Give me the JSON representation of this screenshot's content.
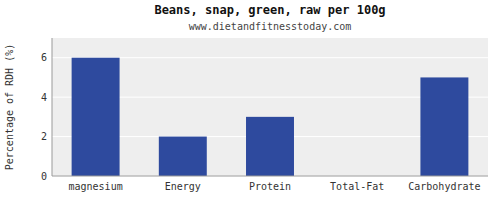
{
  "chart_data": {
    "type": "bar",
    "title": "Beans, snap, green, raw per 100g",
    "subtitle": "www.dietandfitnesstoday.com",
    "categories": [
      "magnesium",
      "Energy",
      "Protein",
      "Total-Fat",
      "Carbohydrate"
    ],
    "values": [
      6.0,
      2.0,
      3.0,
      0.0,
      5.0
    ],
    "color": "#2e4a9e",
    "y_label": "Percentage of RDH (%)",
    "ylim": [
      0,
      7
    ],
    "yticks": [
      0,
      2,
      4,
      6
    ],
    "grid": true
  }
}
